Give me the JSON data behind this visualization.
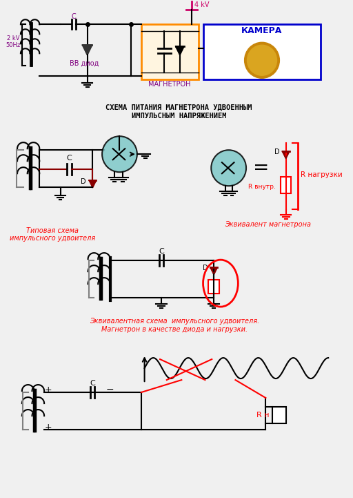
{
  "bg_color": "#f0f0f0",
  "title1": "СХЕМА ПИТАНИЯ МАГНЕТРОНА УДВОЕННЫМ",
  "title2": "ИМПУЛЬСНЫМ НАПРЯЖЕНИЕМ",
  "label_2kv": "2 kV\n50Hz",
  "label_bb": "ВВ диод",
  "label_magn": "МАГНЕТРОН",
  "label_camera": "КАМЕРА",
  "label_4kv": "4 kV",
  "label_c_top": "C",
  "label_c2": "C",
  "label_d": "D",
  "label_typical": "Типовая схема\nимпульсного удвоителя",
  "label_equiv": "Эквивалент магнетрона",
  "label_r_nagruzki": "R нагрузки",
  "label_r_vnutr": "R внутр.",
  "label_equiv_scheme": "Эквивалентная схема  импульсного удвоителя.",
  "label_magn_diode": "Магнетрон в качестве диода и нагрузки.",
  "label_rn": "R н",
  "label_plus1": "+",
  "label_minus": "−",
  "label_plus2": "+"
}
